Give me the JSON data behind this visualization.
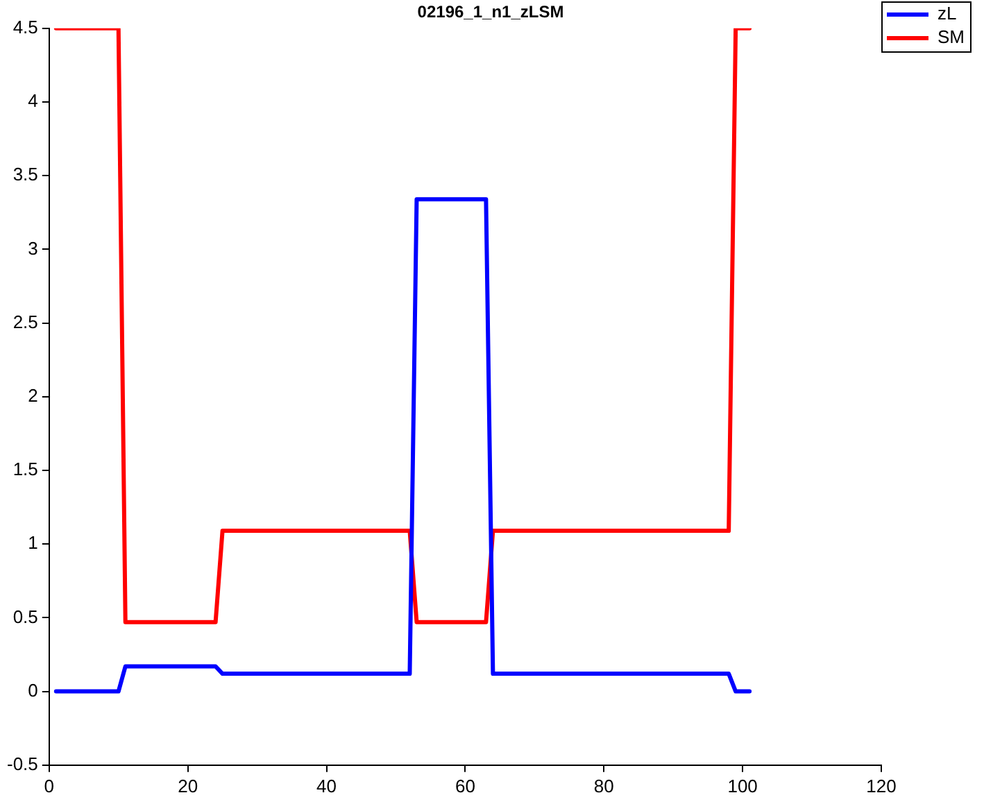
{
  "chart_data": {
    "type": "line",
    "title": "02196_1_n1_zLSM",
    "xlim": [
      0,
      120
    ],
    "xticks": [
      0,
      20,
      40,
      60,
      80,
      100,
      120
    ],
    "ylim": [
      -0.5,
      4.5
    ],
    "yticks": [
      -0.5,
      0,
      0.5,
      1,
      1.5,
      2,
      2.5,
      3,
      3.5,
      4,
      4.5
    ],
    "grid": false,
    "legend": "top right",
    "marker": "none",
    "line_style": "solid",
    "series": [
      {
        "name": "zL",
        "color": "#0000ff",
        "x": [
          1,
          10,
          11,
          24,
          25,
          52,
          53,
          63,
          64,
          98,
          99,
          101
        ],
        "values": [
          0,
          0,
          0.17,
          0.17,
          0.12,
          0.12,
          3.34,
          3.34,
          0.12,
          0.12,
          0,
          0
        ]
      },
      {
        "name": "SM",
        "color": "#ff0000",
        "x": [
          1,
          10,
          11,
          24,
          25,
          52,
          53,
          63,
          64,
          98,
          99,
          101
        ],
        "values": [
          4.5,
          4.5,
          0.47,
          0.47,
          1.09,
          1.09,
          0.47,
          0.47,
          1.09,
          1.09,
          4.5,
          4.5
        ]
      }
    ]
  }
}
